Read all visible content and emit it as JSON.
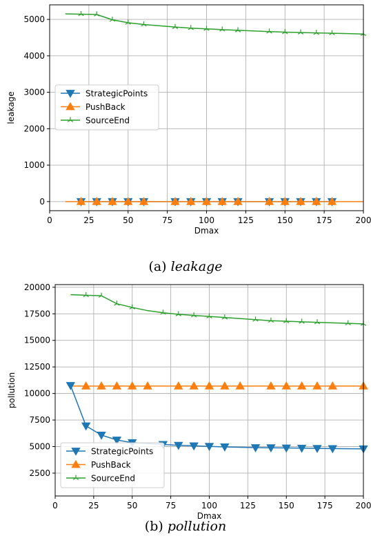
{
  "chart_data": [
    {
      "type": "line",
      "caption_label": "(a)",
      "caption_text": "leakage",
      "xlabel": "Dmax",
      "ylabel": "leakage",
      "xlim": [
        0,
        200
      ],
      "ylim": [
        -250,
        5400
      ],
      "xticks": [
        0,
        25,
        50,
        75,
        100,
        125,
        150,
        175,
        200
      ],
      "yticks": [
        0,
        1000,
        2000,
        3000,
        4000,
        5000
      ],
      "grid": true,
      "legend_position": "center-left",
      "series": [
        {
          "name": "StrategicPoints",
          "color": "#1f77b4",
          "marker": "triangle-down",
          "x": [
            20,
            30,
            40,
            50,
            60,
            80,
            90,
            100,
            110,
            120,
            140,
            150,
            160,
            170,
            180
          ],
          "y": [
            0,
            0,
            0,
            0,
            0,
            0,
            0,
            0,
            0,
            0,
            0,
            0,
            0,
            0,
            0
          ]
        },
        {
          "name": "PushBack",
          "color": "#ff7f0e",
          "marker": "triangle-up",
          "x": [
            10,
            20,
            30,
            40,
            50,
            60,
            80,
            90,
            100,
            110,
            120,
            140,
            150,
            160,
            170,
            180,
            200
          ],
          "y": [
            0,
            0,
            0,
            0,
            0,
            0,
            0,
            0,
            0,
            0,
            0,
            0,
            0,
            0,
            0,
            0,
            0
          ],
          "marker_x": [
            20,
            30,
            40,
            50,
            60,
            80,
            90,
            100,
            110,
            120,
            140,
            150,
            160,
            170,
            180
          ]
        },
        {
          "name": "SourceEnd",
          "color": "#2ca02c",
          "marker": "tri-star",
          "x": [
            10,
            20,
            30,
            40,
            50,
            60,
            80,
            90,
            100,
            110,
            120,
            140,
            150,
            160,
            170,
            180,
            200
          ],
          "y": [
            5150,
            5145,
            5135,
            4990,
            4910,
            4860,
            4790,
            4760,
            4740,
            4720,
            4700,
            4665,
            4650,
            4640,
            4630,
            4620,
            4600
          ],
          "marker_x": [
            20,
            30,
            40,
            50,
            60,
            80,
            90,
            100,
            110,
            120,
            140,
            150,
            160,
            170,
            180,
            200
          ]
        }
      ]
    },
    {
      "type": "line",
      "caption_label": "(b)",
      "caption_text": "pollution",
      "xlabel": "Dmax",
      "ylabel": "pollution",
      "xlim": [
        0,
        200
      ],
      "ylim": [
        350,
        20250
      ],
      "xticks": [
        0,
        25,
        50,
        75,
        100,
        125,
        150,
        175,
        200
      ],
      "yticks": [
        2500,
        5000,
        7500,
        10000,
        12500,
        15000,
        17500,
        20000
      ],
      "grid": true,
      "legend_position": "lower-left",
      "series": [
        {
          "name": "StrategicPoints",
          "color": "#1f77b4",
          "marker": "triangle-down",
          "x": [
            10,
            20,
            30,
            40,
            50,
            70,
            80,
            90,
            100,
            110,
            130,
            140,
            150,
            160,
            170,
            180,
            200
          ],
          "y": [
            10750,
            6950,
            6080,
            5620,
            5370,
            5200,
            5120,
            5070,
            5020,
            4970,
            4900,
            4890,
            4870,
            4850,
            4830,
            4810,
            4790
          ]
        },
        {
          "name": "PushBack",
          "color": "#ff7f0e",
          "marker": "triangle-up",
          "x": [
            10,
            20,
            30,
            40,
            50,
            60,
            80,
            90,
            100,
            110,
            120,
            140,
            150,
            160,
            170,
            180,
            200
          ],
          "y": [
            10700,
            10700,
            10700,
            10700,
            10700,
            10700,
            10700,
            10700,
            10700,
            10700,
            10700,
            10700,
            10700,
            10700,
            10700,
            10700,
            10700
          ],
          "marker_x": [
            20,
            30,
            40,
            50,
            60,
            80,
            90,
            100,
            110,
            120,
            140,
            150,
            160,
            170,
            180,
            200
          ]
        },
        {
          "name": "SourceEnd",
          "color": "#2ca02c",
          "marker": "tri-star",
          "x": [
            10,
            20,
            30,
            40,
            50,
            60,
            70,
            80,
            90,
            100,
            110,
            130,
            140,
            150,
            160,
            170,
            190,
            200
          ],
          "y": [
            19300,
            19250,
            19200,
            18450,
            18100,
            17800,
            17600,
            17450,
            17350,
            17250,
            17150,
            16950,
            16850,
            16800,
            16750,
            16700,
            16600,
            16550
          ],
          "marker_x": [
            20,
            30,
            40,
            50,
            70,
            80,
            90,
            100,
            110,
            130,
            140,
            150,
            160,
            170,
            190,
            200
          ]
        }
      ]
    }
  ]
}
